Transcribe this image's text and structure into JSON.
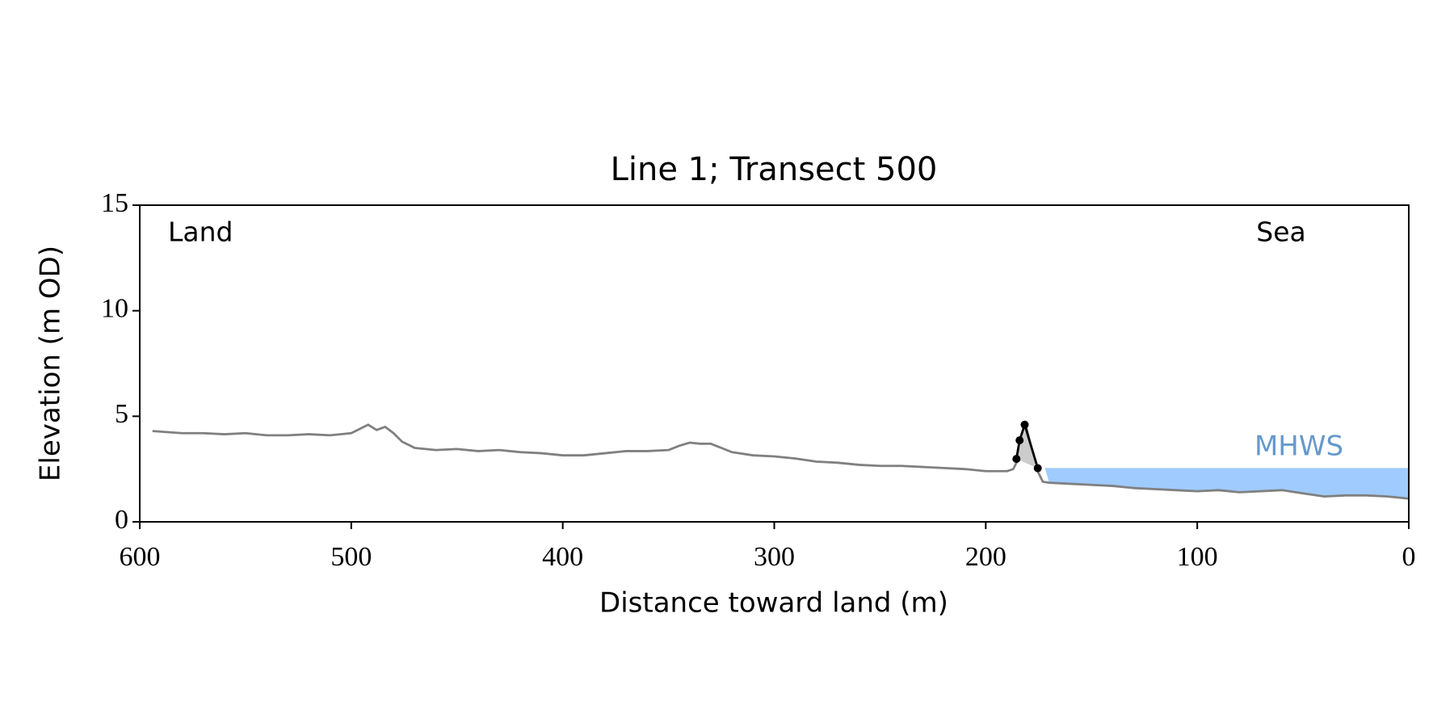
{
  "chart_data": {
    "type": "line",
    "title": "Line 1; Transect 500",
    "xlabel": "Distance toward land (m)",
    "ylabel": "Elevation (m OD)",
    "xlim": [
      600,
      0
    ],
    "ylim": [
      0,
      15
    ],
    "xticks": [
      600,
      500,
      400,
      300,
      200,
      100,
      0
    ],
    "yticks": [
      0,
      5,
      10,
      15
    ],
    "series": [
      {
        "color": "#808080",
        "x": [
          594,
          580,
          570,
          560,
          550,
          540,
          530,
          520,
          510,
          500,
          496,
          492,
          488,
          484,
          480,
          476,
          470,
          460,
          450,
          440,
          430,
          420,
          410,
          400,
          390,
          380,
          370,
          360,
          350,
          345,
          340,
          335,
          330,
          320,
          310,
          300,
          290,
          280,
          270,
          260,
          250,
          240,
          230,
          220,
          210,
          200,
          190,
          187,
          185,
          183,
          181,
          176,
          173,
          170,
          160,
          150,
          140,
          130,
          120,
          110,
          100,
          90,
          80,
          70,
          60,
          50,
          40,
          30,
          20,
          10,
          0
        ],
        "values": [
          4.3,
          4.2,
          4.2,
          4.15,
          4.2,
          4.1,
          4.1,
          4.15,
          4.1,
          4.2,
          4.4,
          4.6,
          4.35,
          4.5,
          4.2,
          3.8,
          3.5,
          3.4,
          3.45,
          3.35,
          3.4,
          3.3,
          3.25,
          3.15,
          3.15,
          3.25,
          3.35,
          3.35,
          3.4,
          3.6,
          3.75,
          3.7,
          3.7,
          3.3,
          3.15,
          3.1,
          3.0,
          2.85,
          2.8,
          2.7,
          2.65,
          2.65,
          2.6,
          2.55,
          2.5,
          2.4,
          2.4,
          2.5,
          2.9,
          3.9,
          4.55,
          2.5,
          1.9,
          1.85,
          1.8,
          1.75,
          1.7,
          1.6,
          1.55,
          1.5,
          1.45,
          1.5,
          1.4,
          1.45,
          1.5,
          1.35,
          1.2,
          1.25,
          1.25,
          1.2,
          1.1
        ]
      },
      {
        "color": "#000000",
        "fill": "#cccccc",
        "markers": true,
        "x": [
          185.5,
          184,
          181.6,
          175.4
        ],
        "values": [
          2.98,
          3.86,
          4.6,
          2.54
        ]
      }
    ],
    "mhws": {
      "label": "MHWS",
      "level": 2.55,
      "x_start": 172,
      "color": "#9fcbff",
      "label_color": "#6699cc"
    },
    "annotations": [
      {
        "text": "Land"
      },
      {
        "text": "Sea"
      }
    ]
  }
}
